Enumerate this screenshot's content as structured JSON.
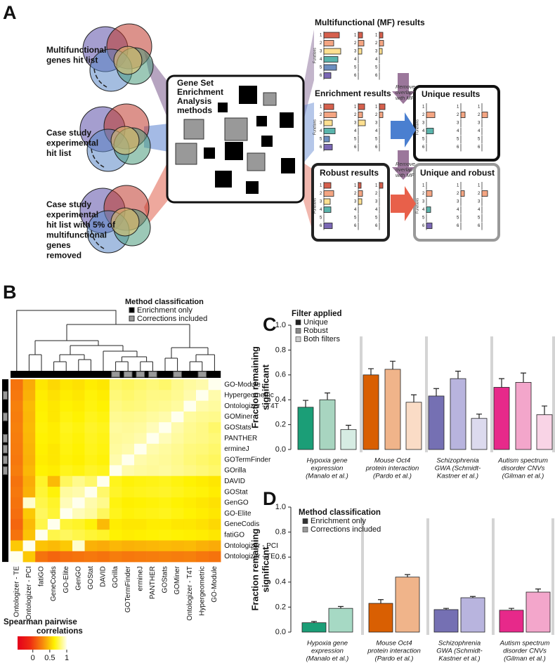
{
  "panel_labels": [
    "A",
    "B",
    "C",
    "D"
  ],
  "diagram": {
    "inputs": [
      [
        "Multifunctional",
        "genes hit list"
      ],
      [
        "Case study",
        "experimental",
        "hit list"
      ],
      [
        "Case study",
        "experimental",
        "hit list with 5% of",
        "multifunctional",
        "genes",
        "removed"
      ]
    ],
    "methods_box": [
      "Gene Set",
      "Enrichment",
      "Analysis",
      "methods"
    ],
    "results": [
      "Multifunctional (MF) results",
      "Enrichment results",
      "Unique results",
      "Robust results",
      "Unique and robust"
    ],
    "remove_note": [
      "Remove",
      "overlap",
      "with MF"
    ],
    "mini_row_labels": [
      "1",
      "2",
      "3",
      "4",
      "5",
      "6"
    ],
    "mini_axis_label": "Functions"
  },
  "chart_data": [
    {
      "type": "heatmap",
      "rows": [
        "GO-Module",
        "Hypergeometric",
        "Ontologizer - T4T",
        "GOMiner",
        "GOStats",
        "PANTHER",
        "ermineJ",
        "GOTermFinder",
        "GOrilla",
        "DAVID",
        "GOStat",
        "GenGO",
        "GO-Elite",
        "GeneCodis",
        "fatiGO",
        "Ontologizer - PCI",
        "Ontologizer - TE"
      ],
      "columns": [
        "Ontologizer - TE",
        "Ontologizer - PCI",
        "fatiGO",
        "GeneCodis",
        "GO-Elite",
        "GenGO",
        "GOStat",
        "DAVID",
        "GOrilla",
        "GOTermFinder",
        "ermineJ",
        "PANTHER",
        "GOStats",
        "GOMiner",
        "Ontologizer - T4T",
        "Hypergeometric",
        "GO-Module"
      ],
      "z": [
        [
          0.2,
          0.4,
          0.6,
          0.55,
          0.6,
          0.58,
          0.62,
          0.6,
          0.8,
          0.78,
          0.8,
          0.82,
          0.8,
          0.85,
          0.88,
          0.9,
          1
        ],
        [
          0.22,
          0.42,
          0.62,
          0.58,
          0.62,
          0.6,
          0.65,
          0.62,
          0.82,
          0.8,
          0.82,
          0.84,
          0.84,
          0.86,
          0.9,
          1,
          0.9
        ],
        [
          0.25,
          0.45,
          0.63,
          0.6,
          0.64,
          0.62,
          0.66,
          0.64,
          0.84,
          0.82,
          0.83,
          0.85,
          0.86,
          0.88,
          1,
          0.9,
          0.88
        ],
        [
          0.24,
          0.44,
          0.64,
          0.6,
          0.66,
          0.64,
          0.68,
          0.66,
          0.86,
          0.85,
          0.86,
          0.88,
          0.9,
          1,
          0.88,
          0.86,
          0.85
        ],
        [
          0.25,
          0.45,
          0.65,
          0.62,
          0.68,
          0.66,
          0.7,
          0.68,
          0.88,
          0.87,
          0.88,
          0.92,
          1,
          0.9,
          0.86,
          0.84,
          0.8
        ],
        [
          0.24,
          0.44,
          0.64,
          0.62,
          0.67,
          0.65,
          0.69,
          0.67,
          0.87,
          0.88,
          0.9,
          1,
          0.92,
          0.88,
          0.85,
          0.84,
          0.82
        ],
        [
          0.23,
          0.43,
          0.63,
          0.6,
          0.66,
          0.64,
          0.68,
          0.66,
          0.88,
          0.9,
          1,
          0.9,
          0.88,
          0.86,
          0.83,
          0.82,
          0.8
        ],
        [
          0.22,
          0.42,
          0.62,
          0.6,
          0.65,
          0.63,
          0.67,
          0.65,
          0.9,
          1,
          0.9,
          0.88,
          0.87,
          0.85,
          0.82,
          0.8,
          0.78
        ],
        [
          0.24,
          0.44,
          0.64,
          0.62,
          0.68,
          0.66,
          0.7,
          0.68,
          1,
          0.9,
          0.88,
          0.87,
          0.88,
          0.86,
          0.84,
          0.82,
          0.8
        ],
        [
          0.2,
          0.4,
          0.7,
          0.45,
          0.78,
          0.85,
          0.8,
          1,
          0.68,
          0.65,
          0.66,
          0.67,
          0.68,
          0.66,
          0.64,
          0.62,
          0.6
        ],
        [
          0.22,
          0.42,
          0.72,
          0.65,
          0.88,
          0.9,
          1,
          0.8,
          0.7,
          0.67,
          0.68,
          0.69,
          0.7,
          0.68,
          0.66,
          0.65,
          0.62
        ],
        [
          0.2,
          0.95,
          0.75,
          0.7,
          0.92,
          1,
          0.9,
          0.85,
          0.66,
          0.63,
          0.64,
          0.65,
          0.66,
          0.64,
          0.62,
          0.6,
          0.58
        ],
        [
          0.18,
          0.5,
          0.78,
          0.72,
          1,
          0.92,
          0.88,
          0.78,
          0.68,
          0.65,
          0.66,
          0.67,
          0.68,
          0.66,
          0.64,
          0.62,
          0.6
        ],
        [
          0.15,
          0.45,
          0.75,
          1,
          0.72,
          0.7,
          0.65,
          0.45,
          0.62,
          0.6,
          0.6,
          0.62,
          0.62,
          0.6,
          0.6,
          0.58,
          0.55
        ],
        [
          0.2,
          0.48,
          1,
          0.75,
          0.78,
          0.75,
          0.72,
          0.7,
          0.64,
          0.62,
          0.63,
          0.64,
          0.65,
          0.64,
          0.63,
          0.62,
          0.6
        ],
        [
          0.5,
          1,
          0.48,
          0.45,
          0.5,
          0.95,
          0.42,
          0.4,
          0.44,
          0.42,
          0.43,
          0.44,
          0.45,
          0.44,
          0.45,
          0.42,
          0.4
        ],
        [
          1,
          0.5,
          0.2,
          0.15,
          0.18,
          0.2,
          0.22,
          0.2,
          0.24,
          0.22,
          0.23,
          0.24,
          0.25,
          0.24,
          0.25,
          0.22,
          0.2
        ]
      ],
      "clim": [
        -0.45,
        1
      ],
      "colors": [
        "#e4001b",
        "#ee2a12",
        "#f7860c",
        "#fff200",
        "#ffffee"
      ],
      "colorbar_title": [
        "Spearman pairwise",
        "correlations"
      ],
      "colorbar_ticks": [
        0,
        0.5,
        1
      ],
      "corrections_included": [
        false,
        true,
        false,
        true,
        false,
        true,
        true,
        true,
        true,
        false,
        false,
        false,
        false,
        false,
        false,
        false,
        false
      ],
      "legend_title": "Method classification",
      "legend": [
        {
          "name": "Enrichment only",
          "color": "#000000"
        },
        {
          "name": "Corrections included",
          "color": "#999999"
        }
      ]
    },
    {
      "type": "bar",
      "categories": [
        [
          "Hypoxia gene",
          "expression",
          "(Manalo et al.)"
        ],
        [
          "Mouse Oct4",
          "protein interaction",
          "(Pardo et al.)"
        ],
        [
          "Schizophrenia",
          "GWA (Schmidt-",
          "Kastner et al.)"
        ],
        [
          "Autism spectrum",
          "disorder CNVs",
          "(Gilman et al.)"
        ]
      ],
      "ylabel": [
        "Fraction remaining",
        "significant"
      ],
      "ylim": [
        0,
        1
      ],
      "yticks": [
        {
          "value": 0,
          "label": "0.0"
        },
        {
          "value": 0.2,
          "label": "0.2"
        },
        {
          "value": 0.4,
          "label": "0.4"
        },
        {
          "value": 0.6,
          "label": "0.6"
        },
        {
          "value": 0.8,
          "label": "0.8"
        },
        {
          "value": 1,
          "label": "1.0"
        }
      ],
      "legend_title": "Filter applied",
      "series": [
        {
          "name": "Unique",
          "color": "#222222",
          "bar_colors": [
            "#1b9e77",
            "#d95f02",
            "#7570b3",
            "#e7298a"
          ],
          "values": [
            0.34,
            0.6,
            0.43,
            0.5
          ],
          "errors": [
            0.055,
            0.05,
            0.06,
            0.07
          ]
        },
        {
          "name": "Robust",
          "color": "#888888",
          "bar_colors": [
            "#a8d5c0",
            "#f0b48a",
            "#b8b4de",
            "#f3a6cb"
          ],
          "values": [
            0.4,
            0.645,
            0.57,
            0.54
          ],
          "errors": [
            0.055,
            0.065,
            0.06,
            0.075
          ]
        },
        {
          "name": "Both filters",
          "color": "#cccccc",
          "bar_colors": [
            "#d6ece3",
            "#fadcc6",
            "#dcdaee",
            "#f9d4e6"
          ],
          "values": [
            0.16,
            0.38,
            0.25,
            0.28
          ],
          "errors": [
            0.035,
            0.06,
            0.035,
            0.07
          ]
        }
      ]
    },
    {
      "type": "bar",
      "categories": [
        [
          "Hypoxia gene",
          "expression",
          "(Manalo et al.)"
        ],
        [
          "Mouse Oct4",
          "protein interaction",
          "(Pardo et al.)"
        ],
        [
          "Schizophrenia",
          "GWA (Schmidt-",
          "Kastner et al.)"
        ],
        [
          "Autism spectrum",
          "disorder CNVs",
          "(Gilman et al.)"
        ]
      ],
      "ylabel": [
        "Fraction remaining",
        "significant"
      ],
      "ylim": [
        0,
        1
      ],
      "yticks": [
        {
          "value": 0,
          "label": "0.0"
        },
        {
          "value": 0.2,
          "label": "0.2"
        },
        {
          "value": 0.4,
          "label": "0.4"
        },
        {
          "value": 0.6,
          "label": "0.6"
        },
        {
          "value": 0.8,
          "label": "0.8"
        },
        {
          "value": 1,
          "label": "1.0"
        }
      ],
      "legend_title": "Method classification",
      "series": [
        {
          "name": "Enrichment only",
          "color": "#333333",
          "bar_colors": [
            "#1b9e77",
            "#d95f02",
            "#7570b3",
            "#e7298a"
          ],
          "values": [
            0.075,
            0.23,
            0.18,
            0.175
          ],
          "errors": [
            0.01,
            0.03,
            0.01,
            0.015
          ]
        },
        {
          "name": "Corrections included",
          "color": "#999999",
          "bar_colors": [
            "#a6d9c4",
            "#f0b48a",
            "#b8b4de",
            "#f3a6cb"
          ],
          "values": [
            0.19,
            0.44,
            0.275,
            0.32
          ],
          "errors": [
            0.015,
            0.02,
            0.01,
            0.025
          ]
        }
      ]
    }
  ]
}
